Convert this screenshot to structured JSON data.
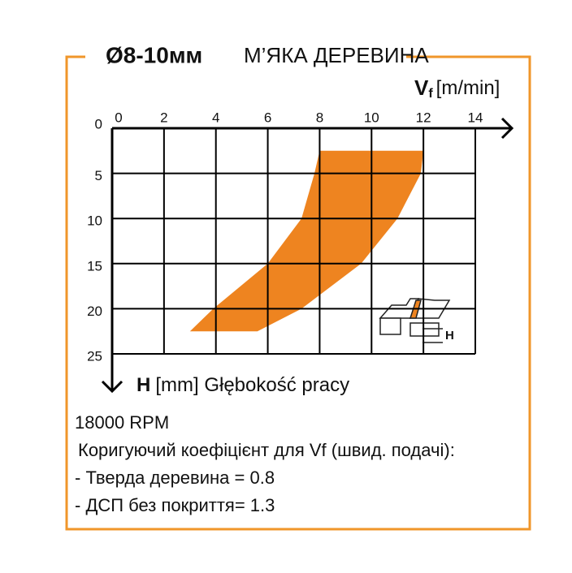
{
  "chart_data": {
    "type": "area",
    "title": "Ø8-10мм",
    "subtitle": "М’ЯКА ДЕРЕВИНА",
    "x_label_symbol": "V",
    "x_label_sub": "f",
    "x_label_unit": "[m/min]",
    "y_label_symbol": "H",
    "y_label_text": "[mm] Głębokość pracy",
    "xlim": [
      0,
      14
    ],
    "xticks": [
      0,
      2,
      4,
      6,
      8,
      10,
      12,
      14
    ],
    "ylim": [
      0,
      25
    ],
    "yticks": [
      0,
      5,
      10,
      15,
      20,
      25
    ],
    "depth": [
      2.5,
      5,
      10,
      15,
      20,
      22.5
    ],
    "x_low": [
      8.0,
      7.8,
      7.3,
      6.0,
      3.9,
      3.0
    ],
    "x_high": [
      12.0,
      11.9,
      11.0,
      9.6,
      7.3,
      5.6
    ],
    "color": "#ee8420",
    "grid": true,
    "icon_label": "H",
    "notes": [
      "18000 RPM",
      "Коригуючий коефіцієнт для Vf (швид. подачі):",
      "- Тверда деревина  = 0.8",
      "- ДСП без покриття= 1.3"
    ]
  }
}
